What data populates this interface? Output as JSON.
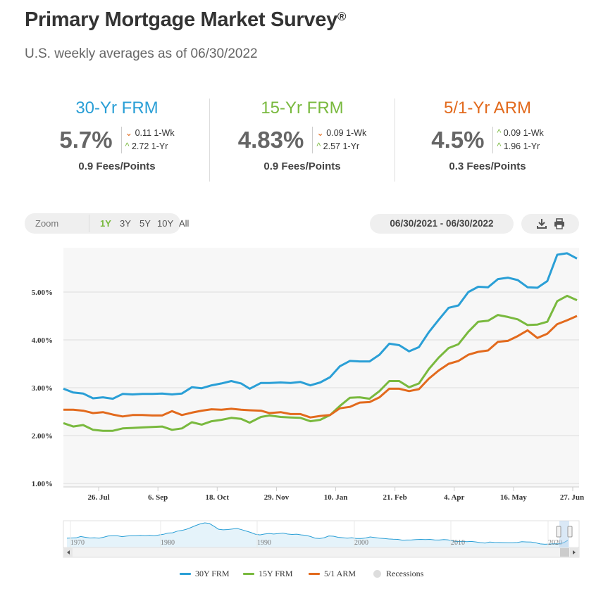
{
  "page": {
    "title": "Primary Mortgage Market Survey",
    "title_mark": "®",
    "subtitle": "U.S. weekly averages as of 06/30/2022"
  },
  "rates": [
    {
      "name": "30-Yr FRM",
      "color": "#2a9fd6",
      "value": "5.7%",
      "wk_dir": "down",
      "wk": "0.11 1-Wk",
      "yr_dir": "up",
      "yr": "2.72 1-Yr",
      "fees": "0.9 Fees/Points"
    },
    {
      "name": "15-Yr FRM",
      "color": "#79b93e",
      "value": "4.83%",
      "wk_dir": "down",
      "wk": "0.09 1-Wk",
      "yr_dir": "up",
      "yr": "2.57 1-Yr",
      "fees": "0.9 Fees/Points"
    },
    {
      "name": "5/1-Yr ARM",
      "color": "#e26a1d",
      "value": "4.5%",
      "wk_dir": "up",
      "wk": "0.09 1-Wk",
      "yr_dir": "up",
      "yr": "1.96 1-Yr",
      "fees": "0.3 Fees/Points"
    }
  ],
  "controls": {
    "zoom_label": "Zoom",
    "zoom_options": [
      "1Y",
      "3Y",
      "5Y",
      "10Y",
      "All"
    ],
    "zoom_selected": "1Y",
    "date_range": "06/30/2021 - 06/30/2022",
    "download_icon": "download-icon",
    "print_icon": "print-icon"
  },
  "chart_data": {
    "type": "line",
    "title": "",
    "xlabel": "",
    "ylabel": "",
    "ylim": [
      1.0,
      6.0
    ],
    "yticks": [
      "1.00%",
      "2.00%",
      "3.00%",
      "4.00%",
      "5.00%"
    ],
    "xticks": [
      "26. Jul",
      "6. Sep",
      "18. Oct",
      "29. Nov",
      "10. Jan",
      "21. Feb",
      "4. Apr",
      "16. May",
      "27. Jun"
    ],
    "grid": true,
    "legend_position": "bottom",
    "x": [
      "2021-07-01",
      "2021-07-08",
      "2021-07-15",
      "2021-07-22",
      "2021-07-29",
      "2021-08-05",
      "2021-08-12",
      "2021-08-19",
      "2021-08-26",
      "2021-09-02",
      "2021-09-09",
      "2021-09-16",
      "2021-09-23",
      "2021-09-30",
      "2021-10-07",
      "2021-10-14",
      "2021-10-21",
      "2021-10-28",
      "2021-11-04",
      "2021-11-10",
      "2021-11-18",
      "2021-11-24",
      "2021-12-02",
      "2021-12-09",
      "2021-12-16",
      "2021-12-23",
      "2021-12-30",
      "2022-01-06",
      "2022-01-13",
      "2022-01-20",
      "2022-01-27",
      "2022-02-03",
      "2022-02-10",
      "2022-02-17",
      "2022-02-24",
      "2022-03-03",
      "2022-03-10",
      "2022-03-17",
      "2022-03-24",
      "2022-03-31",
      "2022-04-07",
      "2022-04-14",
      "2022-04-21",
      "2022-04-28",
      "2022-05-05",
      "2022-05-12",
      "2022-05-19",
      "2022-05-26",
      "2022-06-02",
      "2022-06-09",
      "2022-06-16",
      "2022-06-23",
      "2022-06-30"
    ],
    "series": [
      {
        "name": "30Y FRM",
        "color": "#2a9fd6",
        "values": [
          2.98,
          2.9,
          2.88,
          2.78,
          2.8,
          2.77,
          2.87,
          2.86,
          2.87,
          2.87,
          2.88,
          2.86,
          2.88,
          3.01,
          2.99,
          3.05,
          3.09,
          3.14,
          3.09,
          2.98,
          3.1,
          3.1,
          3.11,
          3.1,
          3.12,
          3.05,
          3.11,
          3.22,
          3.45,
          3.56,
          3.55,
          3.55,
          3.69,
          3.92,
          3.89,
          3.76,
          3.85,
          4.16,
          4.42,
          4.67,
          4.72,
          5.0,
          5.11,
          5.1,
          5.27,
          5.3,
          5.25,
          5.1,
          5.09,
          5.23,
          5.78,
          5.81,
          5.7
        ]
      },
      {
        "name": "15Y FRM",
        "color": "#79b93e",
        "values": [
          2.26,
          2.19,
          2.22,
          2.12,
          2.1,
          2.1,
          2.15,
          2.16,
          2.17,
          2.18,
          2.19,
          2.12,
          2.15,
          2.28,
          2.23,
          2.3,
          2.33,
          2.37,
          2.35,
          2.27,
          2.39,
          2.42,
          2.39,
          2.38,
          2.37,
          2.3,
          2.33,
          2.43,
          2.62,
          2.79,
          2.8,
          2.77,
          2.93,
          3.14,
          3.14,
          3.01,
          3.09,
          3.39,
          3.63,
          3.83,
          3.91,
          4.17,
          4.38,
          4.4,
          4.52,
          4.48,
          4.43,
          4.31,
          4.32,
          4.38,
          4.81,
          4.92,
          4.83
        ]
      },
      {
        "name": "5/1 ARM",
        "color": "#e26a1d",
        "values": [
          2.54,
          2.54,
          2.52,
          2.47,
          2.49,
          2.44,
          2.4,
          2.43,
          2.43,
          2.42,
          2.42,
          2.51,
          2.43,
          2.48,
          2.52,
          2.55,
          2.54,
          2.56,
          2.54,
          2.53,
          2.52,
          2.47,
          2.49,
          2.45,
          2.45,
          2.38,
          2.41,
          2.43,
          2.57,
          2.6,
          2.69,
          2.7,
          2.8,
          2.98,
          2.98,
          2.93,
          2.97,
          3.19,
          3.36,
          3.5,
          3.56,
          3.69,
          3.75,
          3.78,
          3.96,
          3.98,
          4.08,
          4.2,
          4.04,
          4.13,
          4.33,
          4.41,
          4.5
        ]
      }
    ],
    "recessions_label": "Recessions"
  },
  "navigator": {
    "year_labels": [
      "1970",
      "1980",
      "1990",
      "2000",
      "2010",
      "2020"
    ],
    "values": [
      7.3,
      7.4,
      7.5,
      8.5,
      7.9,
      7.4,
      7.5,
      7.3,
      8.0,
      8.9,
      9.0,
      9.0,
      8.4,
      8.8,
      9.1,
      9.1,
      9.3,
      9.1,
      9.4,
      9.0,
      9.6,
      10.1,
      11.0,
      11.2,
      12.4,
      12.9,
      13.8,
      15.1,
      16.5,
      17.7,
      18.5,
      18.0,
      16.0,
      13.8,
      13.4,
      13.6,
      14.0,
      14.4,
      13.5,
      12.5,
      11.5,
      10.2,
      9.7,
      10.3,
      10.7,
      10.3,
      10.6,
      11.0,
      10.3,
      10.0,
      10.2,
      9.7,
      9.3,
      8.5,
      7.3,
      7.0,
      7.6,
      8.9,
      8.7,
      7.9,
      7.6,
      7.3,
      7.6,
      7.0,
      7.0,
      7.4,
      8.2,
      7.7,
      7.3,
      7.0,
      6.7,
      6.5,
      6.4,
      5.8,
      5.9,
      6.0,
      6.3,
      6.4,
      6.3,
      6.4,
      6.0,
      5.9,
      6.2,
      6.0,
      5.2,
      4.8,
      5.0,
      4.7,
      4.9,
      4.5,
      4.0,
      3.7,
      4.4,
      4.2,
      4.1,
      4.0,
      3.9,
      3.9,
      4.1,
      4.7,
      4.5,
      4.4,
      3.9,
      3.1,
      2.8,
      3.0,
      3.2,
      3.1,
      3.8,
      5.7
    ]
  }
}
